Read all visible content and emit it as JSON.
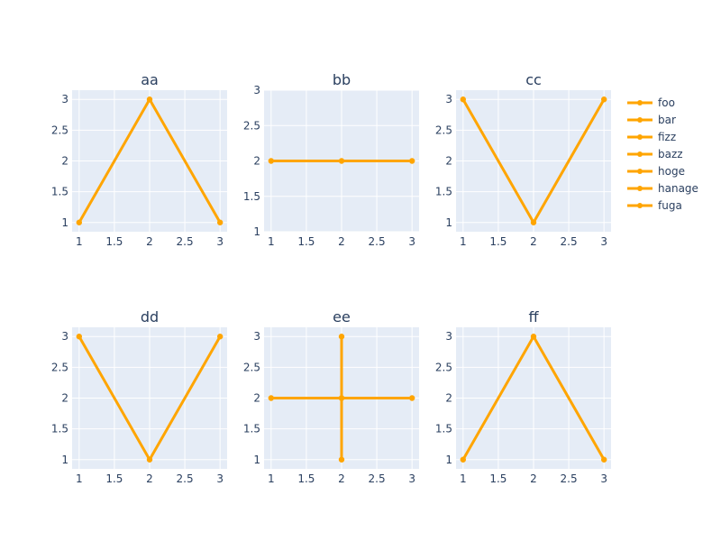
{
  "chart_data": {
    "type": "line",
    "grid": true,
    "legend_position": "right",
    "colors": {
      "line": "#ffa500",
      "plot_bg": "#e5ecf6",
      "grid": "#ffffff",
      "text": "#2a3f5f"
    },
    "legend": [
      "foo",
      "bar",
      "fizz",
      "bazz",
      "hoge",
      "hanage",
      "fuga"
    ],
    "subplots": [
      {
        "title": "aa",
        "xlim": [
          0.9,
          3.1
        ],
        "ylim": [
          0.85,
          3.15
        ],
        "xticks": [
          "1",
          "1.5",
          "2",
          "2.5",
          "3"
        ],
        "yticks": [
          "1",
          "1.5",
          "2",
          "2.5",
          "3"
        ],
        "series": [
          {
            "x": [
              1,
              2,
              3
            ],
            "y": [
              1,
              3,
              1
            ]
          }
        ]
      },
      {
        "title": "bb",
        "xlim": [
          0.9,
          3.1
        ],
        "ylim": [
          1,
          3
        ],
        "xticks": [
          "1",
          "1.5",
          "2",
          "2.5",
          "3"
        ],
        "yticks": [
          "1",
          "1.5",
          "2",
          "2.5",
          "3"
        ],
        "series": [
          {
            "x": [
              1,
              2,
              3
            ],
            "y": [
              2,
              2,
              2
            ]
          }
        ]
      },
      {
        "title": "cc",
        "xlim": [
          0.9,
          3.1
        ],
        "ylim": [
          0.85,
          3.15
        ],
        "xticks": [
          "1",
          "1.5",
          "2",
          "2.5",
          "3"
        ],
        "yticks": [
          "1",
          "1.5",
          "2",
          "2.5",
          "3"
        ],
        "series": [
          {
            "x": [
              1,
              2,
              3
            ],
            "y": [
              3,
              1,
              3
            ]
          }
        ]
      },
      {
        "title": "dd",
        "xlim": [
          0.9,
          3.1
        ],
        "ylim": [
          0.85,
          3.15
        ],
        "xticks": [
          "1",
          "1.5",
          "2",
          "2.5",
          "3"
        ],
        "yticks": [
          "1",
          "1.5",
          "2",
          "2.5",
          "3"
        ],
        "series": [
          {
            "x": [
              1,
              2,
              3
            ],
            "y": [
              3,
              1,
              3
            ]
          }
        ]
      },
      {
        "title": "ee",
        "xlim": [
          0.9,
          3.1
        ],
        "ylim": [
          0.85,
          3.15
        ],
        "xticks": [
          "1",
          "1.5",
          "2",
          "2.5",
          "3"
        ],
        "yticks": [
          "1",
          "1.5",
          "2",
          "2.5",
          "3"
        ],
        "series": [
          {
            "x": [
              1,
              2,
              3
            ],
            "y": [
              2,
              2,
              2
            ]
          },
          {
            "x": [
              2,
              2,
              2
            ],
            "y": [
              1,
              2,
              3
            ]
          }
        ]
      },
      {
        "title": "ff",
        "xlim": [
          0.9,
          3.1
        ],
        "ylim": [
          0.85,
          3.15
        ],
        "xticks": [
          "1",
          "1.5",
          "2",
          "2.5",
          "3"
        ],
        "yticks": [
          "1",
          "1.5",
          "2",
          "2.5",
          "3"
        ],
        "series": [
          {
            "x": [
              1,
              2,
              3
            ],
            "y": [
              1,
              3,
              1
            ]
          }
        ]
      }
    ]
  }
}
